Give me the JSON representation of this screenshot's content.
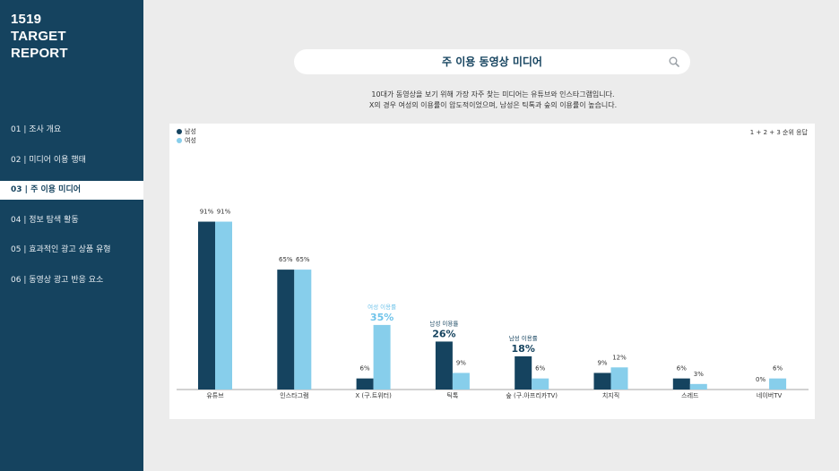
{
  "brand": {
    "line1": "1519",
    "line2": "TARGET",
    "line3": "REPORT"
  },
  "nav": [
    {
      "label": "01 | 조사 개요",
      "active": false
    },
    {
      "label": "02 | 미디어 이용 행태",
      "active": false
    },
    {
      "label": "03 | 주 이용 미디어",
      "active": true
    },
    {
      "label": "04 | 정보 탐색 활동",
      "active": false
    },
    {
      "label": "05 | 효과적인 광고 상품 유형",
      "active": false
    },
    {
      "label": "06 | 동영상 광고 반응 요소",
      "active": false
    }
  ],
  "search": {
    "text": "주 이용 동영상 미디어",
    "icon": "search-icon"
  },
  "description": {
    "line1": "10대가 동영상을 보기 위해 가장 자주 찾는 미디어는 유튜브와 인스타그램입니다.",
    "line2": "X의 경우 여성의 이용률이 압도적이었으며, 남성은 틱톡과 숲의 이용률이 높습니다."
  },
  "note": "1 + 2 + 3 순위 응답",
  "colors": {
    "sidebar": "#15435f",
    "male": "#15435f",
    "female": "#87ceeb"
  },
  "chart_data": {
    "type": "bar",
    "categories": [
      "유튜브",
      "인스타그램",
      "X (구.트위터)",
      "틱톡",
      "숲 (구.아프리카TV)",
      "치지직",
      "스레드",
      "네이버TV"
    ],
    "series": [
      {
        "name": "남성",
        "values": [
          91,
          65,
          6,
          26,
          18,
          9,
          6,
          0
        ]
      },
      {
        "name": "여성",
        "values": [
          91,
          65,
          35,
          9,
          6,
          12,
          3,
          6
        ]
      }
    ],
    "ylim": [
      0,
      100
    ],
    "legend": "top-left",
    "grid": false,
    "highlights": [
      {
        "category_index": 2,
        "series_index": 1,
        "label": "여성 이용률"
      },
      {
        "category_index": 3,
        "series_index": 0,
        "label": "남성 이용률"
      },
      {
        "category_index": 4,
        "series_index": 0,
        "label": "남성 이용률"
      }
    ]
  }
}
